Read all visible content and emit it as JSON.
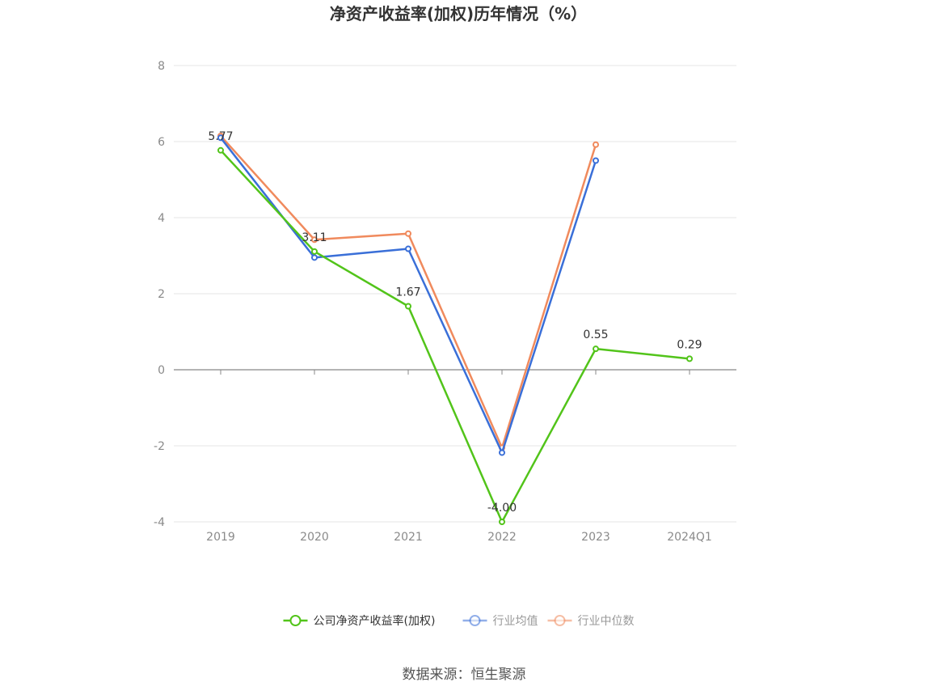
{
  "chart_data": {
    "type": "line",
    "title": "净资产收益率(加权)历年情况（%）",
    "categories": [
      "2019",
      "2020",
      "2021",
      "2022",
      "2023",
      "2024Q1"
    ],
    "ylim": [
      -4,
      8
    ],
    "yticks": [
      "8",
      "6",
      "4",
      "2",
      "0",
      "-2",
      "-4"
    ],
    "ytick_values": [
      8,
      6,
      4,
      2,
      0,
      -2,
      -4
    ],
    "grid": true,
    "legend_position": "bottom",
    "series": [
      {
        "name": "公司净资产收益率(加权)",
        "color": "#52c41a",
        "values": [
          5.77,
          3.11,
          1.67,
          -4.0,
          0.55,
          0.29
        ],
        "labels": [
          "5.77",
          "3.11",
          "1.67",
          "-4.00",
          "0.55",
          "0.29"
        ]
      },
      {
        "name": "行业均值",
        "color": "#3a6fd8",
        "values": [
          6.1,
          2.95,
          3.18,
          -2.18,
          5.5,
          null
        ]
      },
      {
        "name": "行业中位数",
        "color": "#f08a5d",
        "values": [
          6.15,
          3.42,
          3.58,
          -2.05,
          5.92,
          null
        ]
      }
    ]
  },
  "source": "数据来源：恒生聚源"
}
